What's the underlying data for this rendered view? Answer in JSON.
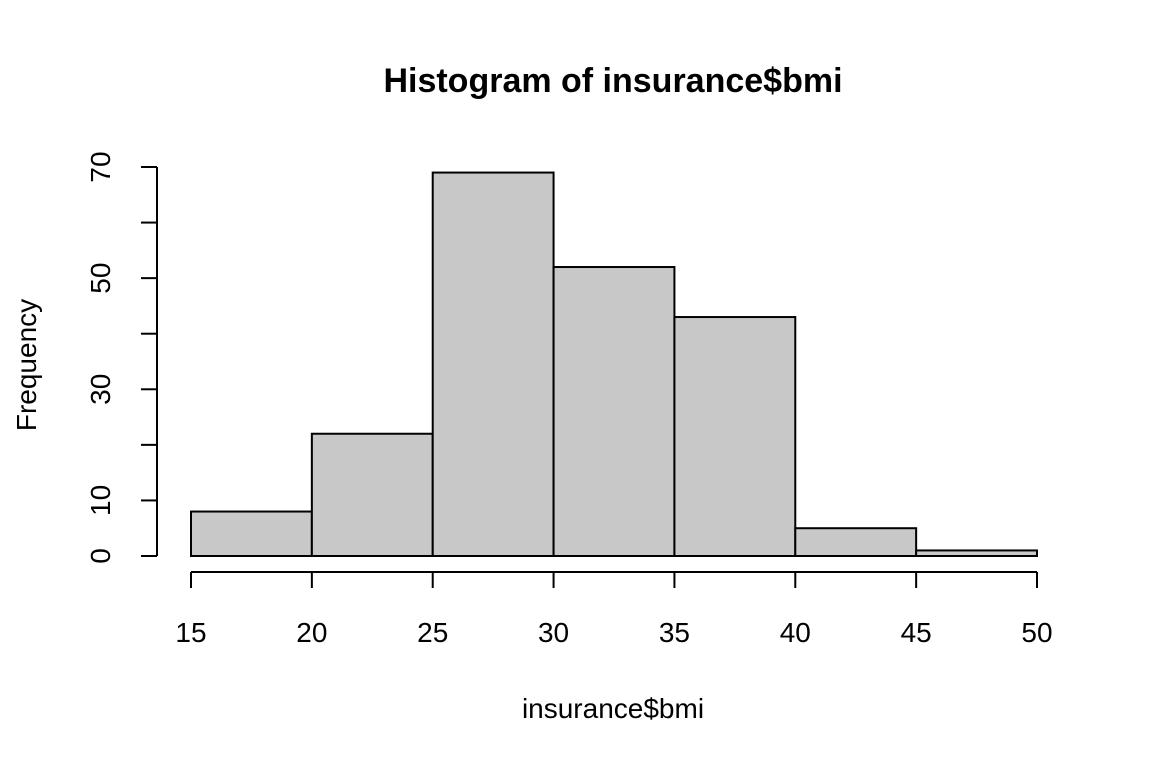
{
  "chart_data": {
    "type": "bar",
    "title": "Histogram of insurance$bmi",
    "xlabel": "insurance$bmi",
    "ylabel": "Frequency",
    "bins": [
      {
        "from": 15,
        "to": 20,
        "count": 8
      },
      {
        "from": 20,
        "to": 25,
        "count": 22
      },
      {
        "from": 25,
        "to": 30,
        "count": 69
      },
      {
        "from": 30,
        "to": 35,
        "count": 52
      },
      {
        "from": 35,
        "to": 40,
        "count": 43
      },
      {
        "from": 40,
        "to": 45,
        "count": 5
      },
      {
        "from": 45,
        "to": 50,
        "count": 1
      }
    ],
    "xlim": [
      15,
      50
    ],
    "ylim": [
      0,
      70
    ],
    "x_ticks": [
      15,
      20,
      25,
      30,
      35,
      40,
      45,
      50
    ],
    "y_ticks": [
      0,
      10,
      20,
      30,
      40,
      50,
      60,
      70
    ],
    "y_tick_labels": [
      "0",
      "10",
      "",
      "30",
      "",
      "50",
      "",
      "70"
    ],
    "bar_color": "#c8c8c8",
    "border_color": "#000000",
    "grid": false,
    "legend": "none"
  }
}
